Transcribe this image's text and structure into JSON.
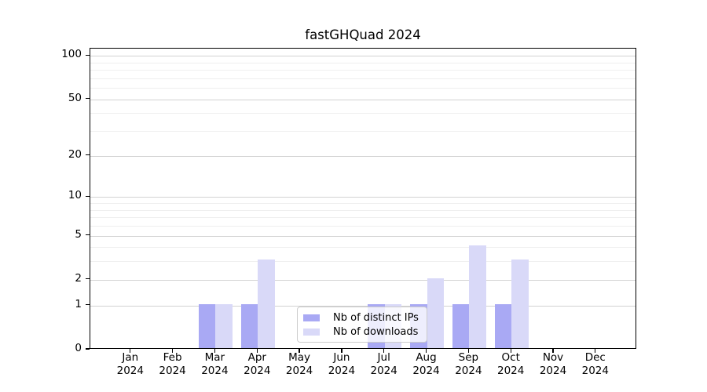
{
  "chart_data": {
    "type": "bar",
    "title": "fastGHQuad 2024",
    "x_tick_months": [
      "Jan",
      "Feb",
      "Mar",
      "Apr",
      "May",
      "Jun",
      "Jul",
      "Aug",
      "Sep",
      "Oct",
      "Nov",
      "Dec"
    ],
    "x_tick_year": "2024",
    "series": [
      {
        "name": "Nb of distinct IPs",
        "color": "#a9a9f4",
        "values": [
          0,
          0,
          1,
          1,
          0,
          0,
          1,
          1,
          1,
          1,
          0,
          0
        ]
      },
      {
        "name": "Nb of downloads",
        "color": "#d9d9f8",
        "values": [
          0,
          0,
          1,
          3,
          0,
          0,
          1,
          2,
          4,
          3,
          0,
          0
        ]
      }
    ],
    "y_axis": {
      "scale": "log10(1+x)",
      "major_ticks": [
        0,
        1,
        2,
        5,
        10,
        20,
        50,
        100
      ],
      "minor_ticks": [
        3,
        4,
        6,
        7,
        8,
        9,
        30,
        40,
        60,
        70,
        80,
        90
      ],
      "ylim": [
        0,
        112
      ]
    },
    "legend": {
      "entries": [
        "Nb of distinct IPs",
        "Nb of downloads"
      ],
      "location": "lower center"
    },
    "grid": "both",
    "background_color": "#ffffff",
    "spine_color": "#000000",
    "grid_major_color": "#d2d2d2",
    "grid_minor_color": "#efefef"
  }
}
